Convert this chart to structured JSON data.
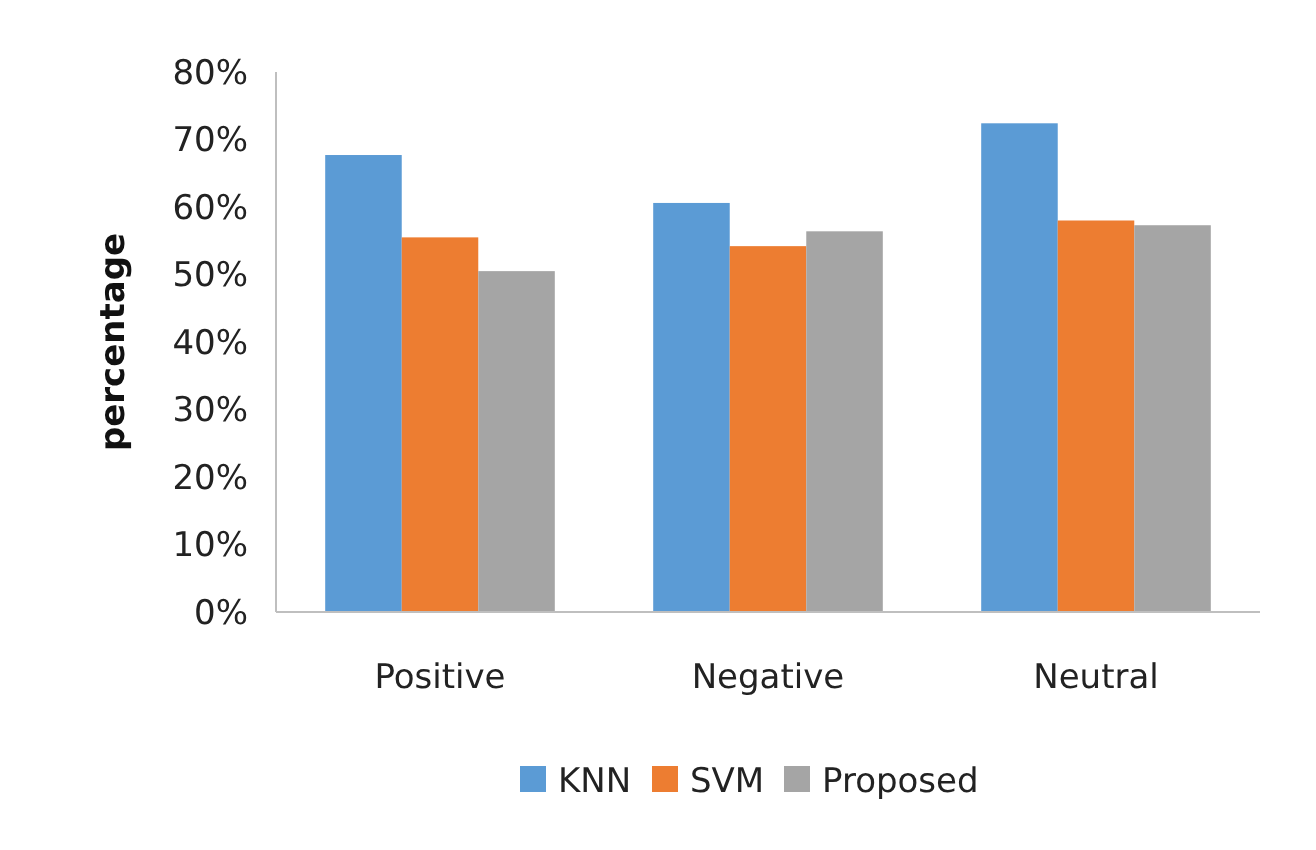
{
  "chart_data": {
    "type": "bar",
    "ylabel": "percentage",
    "categories": [
      "Positive",
      "Negative",
      "Neutral"
    ],
    "series": [
      {
        "name": "KNN",
        "color": "#5b9bd5",
        "values": [
          67.7,
          60.6,
          72.4
        ]
      },
      {
        "name": "SVM",
        "color": "#ed7d31",
        "values": [
          55.5,
          54.2,
          58
        ]
      },
      {
        "name": "Proposed",
        "color": "#a5a5a5",
        "values": [
          50.5,
          56.4,
          57.3
        ]
      }
    ],
    "ylim": [
      0,
      80
    ],
    "yticks": [
      {
        "value": 0,
        "label": "0%"
      },
      {
        "value": 10,
        "label": "10%"
      },
      {
        "value": 20,
        "label": "20%"
      },
      {
        "value": 30,
        "label": "30%"
      },
      {
        "value": 40,
        "label": "40%"
      },
      {
        "value": 50,
        "label": "50%"
      },
      {
        "value": 60,
        "label": "60%"
      },
      {
        "value": 70,
        "label": "70%"
      },
      {
        "value": 80,
        "label": "80%"
      }
    ],
    "grid": false,
    "legend": "bottom"
  }
}
